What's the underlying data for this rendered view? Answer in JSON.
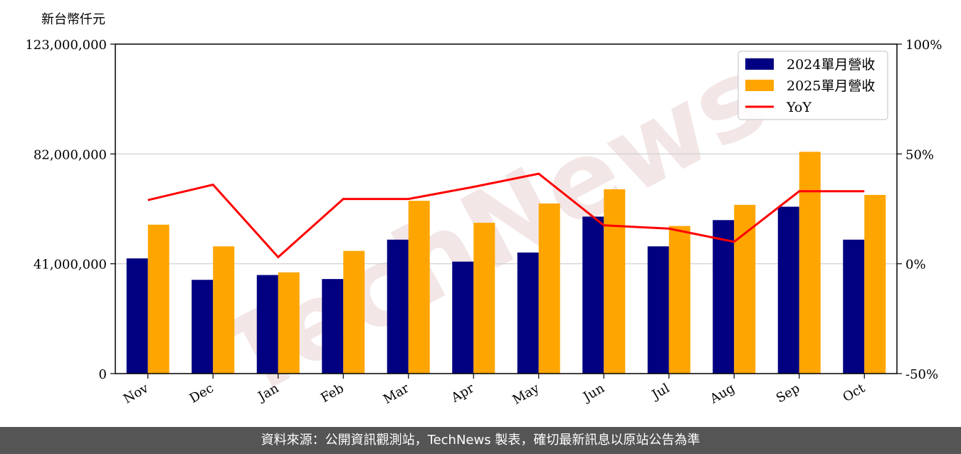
{
  "chart_data": {
    "type": "bar",
    "unit_label": "新台幣仟元",
    "categories": [
      "Nov",
      "Dec",
      "Jan",
      "Feb",
      "Mar",
      "Apr",
      "May",
      "Jun",
      "Jul",
      "Aug",
      "Sep",
      "Oct"
    ],
    "series": [
      {
        "name": "2024單月營收",
        "color": "#000080",
        "values": [
          43000000,
          35000000,
          36800000,
          35300000,
          50000000,
          41800000,
          45200000,
          58600000,
          47500000,
          57300000,
          62300000,
          50000000
        ]
      },
      {
        "name": "2025單月營收",
        "color": "#FFA500",
        "values": [
          55600000,
          47500000,
          37800000,
          45800000,
          64500000,
          56300000,
          63500000,
          68800000,
          55100000,
          63000000,
          82800000,
          66700000
        ]
      }
    ],
    "line_series": {
      "name": "YoY",
      "color": "#FF0000",
      "axis": "right",
      "values": [
        29.0,
        36.0,
        3.0,
        29.5,
        29.5,
        35.0,
        41.0,
        17.5,
        16.0,
        10.0,
        33.0,
        33.0
      ]
    },
    "ylim": [
      0,
      123000000
    ],
    "yticks": [
      0,
      41000000,
      82000000,
      123000000
    ],
    "ytick_labels": [
      "0",
      "41,000,000",
      "82,000,000",
      "123,000,000"
    ],
    "y2lim": [
      -50,
      100
    ],
    "y2ticks": [
      -50,
      0,
      50,
      100
    ],
    "y2tick_labels": [
      "-50%",
      "0%",
      "50%",
      "100%"
    ],
    "grid": "horizontal",
    "legend": "top-right",
    "watermark": "TechNews"
  },
  "footer": {
    "text": "資料來源：公開資訊觀測站，TechNews 製表，確切最新訊息以原站公告為準"
  }
}
